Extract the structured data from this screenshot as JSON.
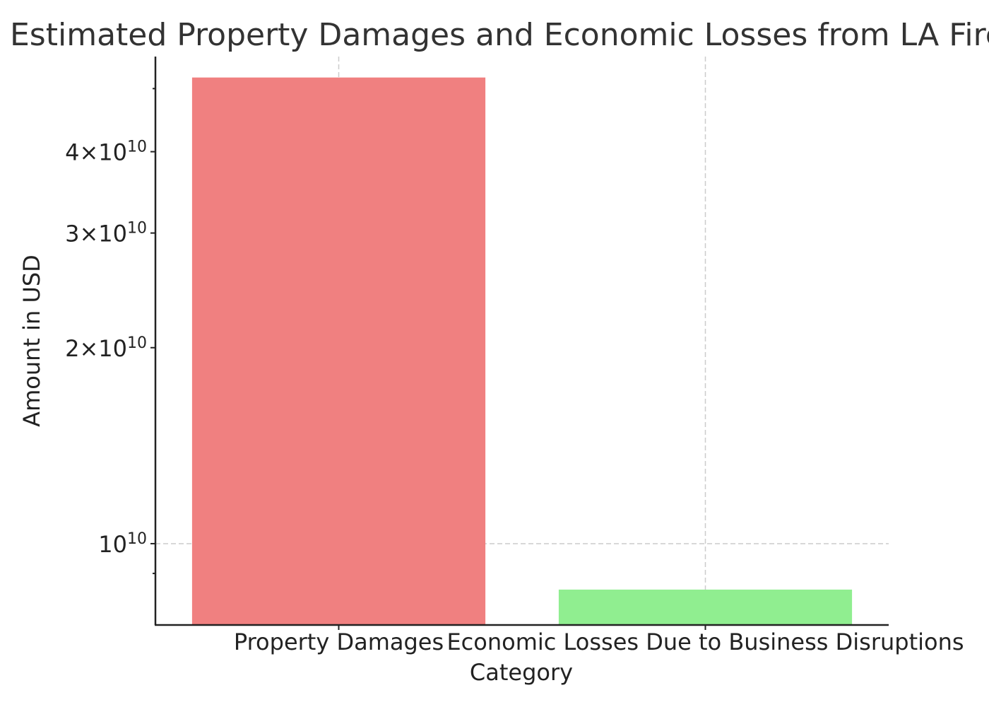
{
  "chart_data": {
    "type": "bar",
    "title": "Estimated Property Damages and Economic Losses from LA Fires",
    "xlabel": "Category",
    "ylabel": "Amount in USD",
    "categories": [
      "Property Damages",
      "Economic Losses Due to Business Disruptions"
    ],
    "values": [
      52000000000,
      8500000000
    ],
    "colors": [
      "#f08080",
      "#90ee90"
    ],
    "y_scale": "log",
    "ylim": [
      7500000000,
      56000000000
    ],
    "y_major_ticks": [
      {
        "value": 10000000000,
        "mantissa": "",
        "exponent": "10"
      },
      {
        "value": 20000000000,
        "mantissa": "2",
        "exponent": "10"
      },
      {
        "value": 30000000000,
        "mantissa": "3",
        "exponent": "10"
      },
      {
        "value": 40000000000,
        "mantissa": "4",
        "exponent": "10"
      }
    ],
    "y_minor_ticks": [
      9000000000,
      50000000000
    ],
    "grid": true,
    "legend": "none"
  }
}
